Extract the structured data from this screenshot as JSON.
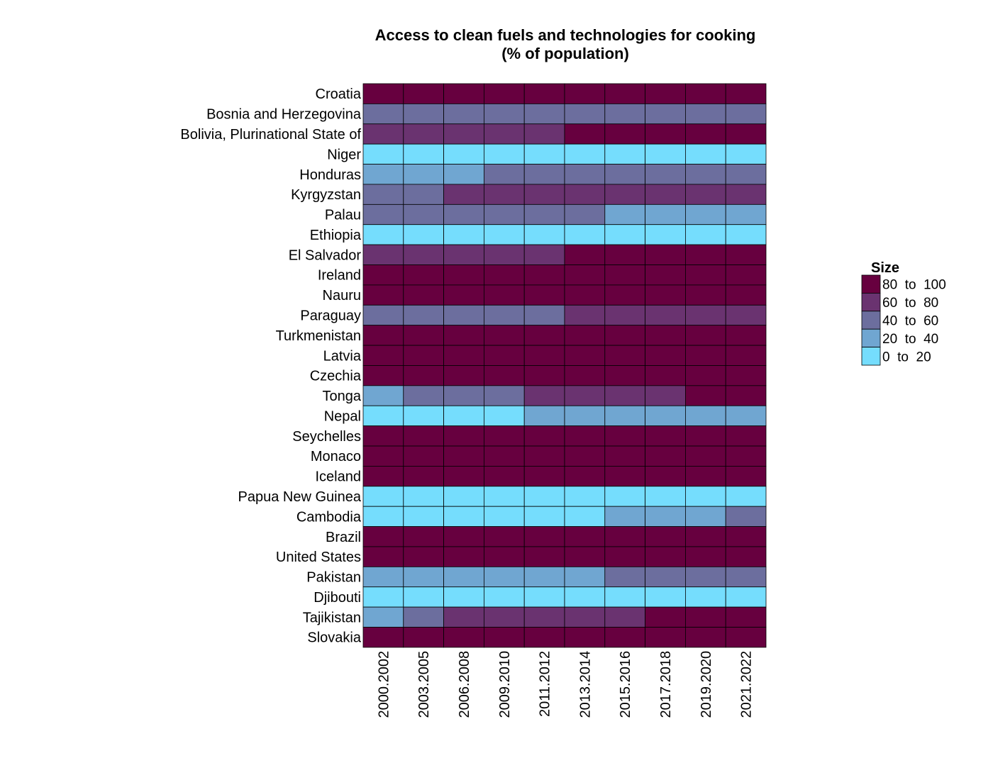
{
  "chart_data": {
    "type": "heatmap",
    "title": "Access to clean fuels and technologies for cooking",
    "subtitle": "(% of population)",
    "x": [
      "2000.2002",
      "2003.2005",
      "2006.2008",
      "2009.2010",
      "2011.2012",
      "2013.2014",
      "2015.2016",
      "2017.2018",
      "2019.2020",
      "2021.2022"
    ],
    "y": [
      "Croatia",
      "Bosnia and Herzegovina",
      "Bolivia, Plurinational State of",
      "Niger",
      "Honduras",
      "Kyrgyzstan",
      "Palau",
      "Ethiopia",
      "El Salvador",
      "Ireland",
      "Nauru",
      "Paraguay",
      "Turkmenistan",
      "Latvia",
      "Czechia",
      "Tonga",
      "Nepal",
      "Seychelles",
      "Monaco",
      "Iceland",
      "Papua New Guinea",
      "Cambodia",
      "Brazil",
      "United States",
      "Pakistan",
      "Djibouti",
      "Tajikistan",
      "Slovakia"
    ],
    "legend": {
      "title": "Size",
      "placement": "right",
      "bins": [
        {
          "label": "80  to  100",
          "color": "#67003f"
        },
        {
          "label": "60  to  80",
          "color": "#6a3370"
        },
        {
          "label": "40  to  60",
          "color": "#6c6e9e"
        },
        {
          "label": "20  to  40",
          "color": "#70a6d1"
        },
        {
          "label": "0  to  20",
          "color": "#75ddfd"
        }
      ]
    },
    "bin_index_by_row": [
      [
        0,
        0,
        0,
        0,
        0,
        0,
        0,
        0,
        0,
        0
      ],
      [
        2,
        2,
        2,
        2,
        2,
        2,
        2,
        2,
        2,
        2
      ],
      [
        1,
        1,
        1,
        1,
        1,
        0,
        0,
        0,
        0,
        0
      ],
      [
        4,
        4,
        4,
        4,
        4,
        4,
        4,
        4,
        4,
        4
      ],
      [
        3,
        3,
        3,
        2,
        2,
        2,
        2,
        2,
        2,
        2
      ],
      [
        2,
        2,
        1,
        1,
        1,
        1,
        1,
        1,
        1,
        1
      ],
      [
        2,
        2,
        2,
        2,
        2,
        2,
        3,
        3,
        3,
        3
      ],
      [
        4,
        4,
        4,
        4,
        4,
        4,
        4,
        4,
        4,
        4
      ],
      [
        1,
        1,
        1,
        1,
        1,
        0,
        0,
        0,
        0,
        0
      ],
      [
        0,
        0,
        0,
        0,
        0,
        0,
        0,
        0,
        0,
        0
      ],
      [
        0,
        0,
        0,
        0,
        0,
        0,
        0,
        0,
        0,
        0
      ],
      [
        2,
        2,
        2,
        2,
        2,
        1,
        1,
        1,
        1,
        1
      ],
      [
        0,
        0,
        0,
        0,
        0,
        0,
        0,
        0,
        0,
        0
      ],
      [
        0,
        0,
        0,
        0,
        0,
        0,
        0,
        0,
        0,
        0
      ],
      [
        0,
        0,
        0,
        0,
        0,
        0,
        0,
        0,
        0,
        0
      ],
      [
        3,
        2,
        2,
        2,
        1,
        1,
        1,
        1,
        0,
        0
      ],
      [
        4,
        4,
        4,
        4,
        3,
        3,
        3,
        3,
        3,
        3
      ],
      [
        0,
        0,
        0,
        0,
        0,
        0,
        0,
        0,
        0,
        0
      ],
      [
        0,
        0,
        0,
        0,
        0,
        0,
        0,
        0,
        0,
        0
      ],
      [
        0,
        0,
        0,
        0,
        0,
        0,
        0,
        0,
        0,
        0
      ],
      [
        4,
        4,
        4,
        4,
        4,
        4,
        4,
        4,
        4,
        4
      ],
      [
        4,
        4,
        4,
        4,
        4,
        4,
        3,
        3,
        3,
        2
      ],
      [
        0,
        0,
        0,
        0,
        0,
        0,
        0,
        0,
        0,
        0
      ],
      [
        0,
        0,
        0,
        0,
        0,
        0,
        0,
        0,
        0,
        0
      ],
      [
        3,
        3,
        3,
        3,
        3,
        3,
        2,
        2,
        2,
        2
      ],
      [
        4,
        4,
        4,
        4,
        4,
        4,
        4,
        4,
        4,
        4
      ],
      [
        3,
        2,
        1,
        1,
        1,
        1,
        1,
        0,
        0,
        0
      ],
      [
        0,
        0,
        0,
        0,
        0,
        0,
        0,
        0,
        0,
        0
      ]
    ],
    "grid": false
  }
}
